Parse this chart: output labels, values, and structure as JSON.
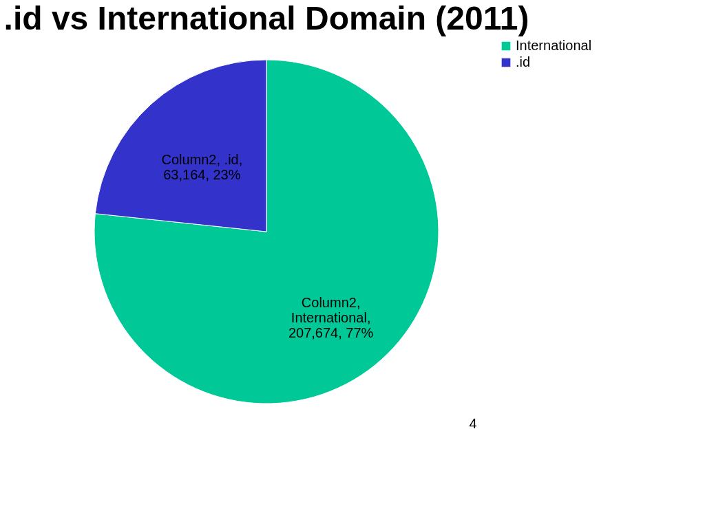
{
  "chart_data": {
    "type": "pie",
    "title": ".id vs International Domain (2011)",
    "categories": [
      "International",
      ".id"
    ],
    "values": [
      207674,
      63164
    ],
    "colors": [
      "#00c896",
      "#3333cc"
    ],
    "value_labels": [
      "Column2,\nInternational,\n207,674, 77%",
      "Column2, .id,\n63,164, 23%"
    ],
    "legend": "right",
    "annotations": [
      "4"
    ]
  }
}
